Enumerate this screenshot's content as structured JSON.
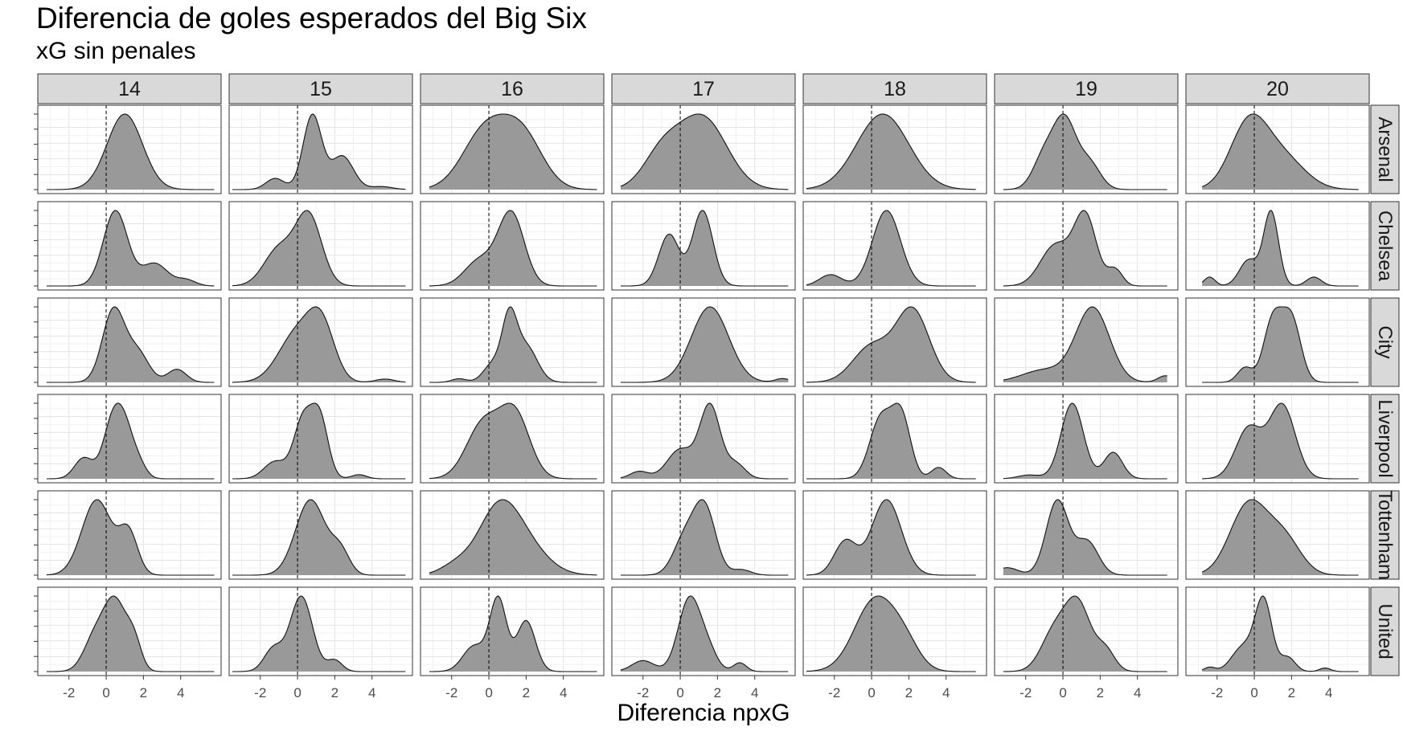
{
  "chart_data": {
    "type": "area",
    "title": "Diferencia de goles esperados del Big Six",
    "subtitle": "xG sin penales",
    "xlabel": "Diferencia npxG",
    "ylabel": "",
    "xlim": [
      -3.5,
      6.0
    ],
    "xticks": [
      -2,
      0,
      2,
      4
    ],
    "reference_line_x": 0,
    "fill_color": "#999999",
    "grid": true,
    "col_facets": [
      "14",
      "15",
      "16",
      "17",
      "18",
      "19",
      "20"
    ],
    "row_facets": [
      "Arsenal",
      "Chelsea",
      "City",
      "Liverpool",
      "Tottenham",
      "United"
    ],
    "x_range_by_season": {
      "14": [
        -3.2,
        5.8
      ],
      "15": [
        -3.5,
        5.8
      ],
      "16": [
        -3.2,
        5.8
      ],
      "17": [
        -3.2,
        5.8
      ],
      "18": [
        -3.5,
        5.6
      ],
      "19": [
        -3.2,
        5.6
      ],
      "20": [
        -2.8,
        5.6
      ]
    },
    "densities": [
      {
        "team": "Arsenal",
        "season": "14",
        "peaks": [
          [
            1.0,
            1.0,
            0.95
          ]
        ]
      },
      {
        "team": "Arsenal",
        "season": "15",
        "peaks": [
          [
            0.8,
            1.0,
            0.5
          ],
          [
            2.4,
            0.45,
            0.6
          ],
          [
            -1.2,
            0.15,
            0.5
          ],
          [
            4.5,
            0.04,
            0.6
          ]
        ]
      },
      {
        "team": "Arsenal",
        "season": "16",
        "peaks": [
          [
            -0.2,
            0.9,
            1.2
          ],
          [
            1.8,
            0.8,
            1.1
          ]
        ]
      },
      {
        "team": "Arsenal",
        "season": "17",
        "peaks": [
          [
            1.2,
            0.95,
            1.3
          ],
          [
            -1.0,
            0.45,
            1.0
          ]
        ]
      },
      {
        "team": "Arsenal",
        "season": "18",
        "peaks": [
          [
            0.6,
            1.0,
            1.4
          ]
        ]
      },
      {
        "team": "Arsenal",
        "season": "19",
        "peaks": [
          [
            0.1,
            1.0,
            0.6
          ],
          [
            -1.0,
            0.5,
            0.6
          ],
          [
            1.4,
            0.4,
            0.6
          ]
        ]
      },
      {
        "team": "Arsenal",
        "season": "20",
        "peaks": [
          [
            -0.3,
            1.0,
            1.0
          ],
          [
            1.5,
            0.5,
            1.2
          ]
        ]
      },
      {
        "team": "Chelsea",
        "season": "14",
        "peaks": [
          [
            0.5,
            1.0,
            0.65
          ],
          [
            2.6,
            0.3,
            0.7
          ],
          [
            4.3,
            0.08,
            0.5
          ]
        ]
      },
      {
        "team": "Chelsea",
        "season": "15",
        "peaks": [
          [
            0.6,
            0.95,
            0.7
          ],
          [
            -1.0,
            0.5,
            0.8
          ]
        ]
      },
      {
        "team": "Chelsea",
        "season": "16",
        "peaks": [
          [
            1.2,
            1.0,
            0.7
          ],
          [
            -0.5,
            0.35,
            0.8
          ]
        ]
      },
      {
        "team": "Chelsea",
        "season": "17",
        "peaks": [
          [
            1.2,
            0.95,
            0.55
          ],
          [
            -0.6,
            0.65,
            0.55
          ]
        ]
      },
      {
        "team": "Chelsea",
        "season": "18",
        "peaks": [
          [
            0.8,
            1.0,
            0.75
          ],
          [
            -2.2,
            0.15,
            0.6
          ]
        ]
      },
      {
        "team": "Chelsea",
        "season": "19",
        "peaks": [
          [
            1.2,
            0.85,
            0.6
          ],
          [
            -0.4,
            0.5,
            0.8
          ],
          [
            2.8,
            0.2,
            0.4
          ]
        ]
      },
      {
        "team": "Chelsea",
        "season": "20",
        "peaks": [
          [
            0.9,
            1.0,
            0.4
          ],
          [
            -0.3,
            0.35,
            0.5
          ],
          [
            -2.4,
            0.12,
            0.3
          ],
          [
            3.2,
            0.12,
            0.4
          ]
        ]
      },
      {
        "team": "City",
        "season": "14",
        "peaks": [
          [
            0.4,
            1.0,
            0.6
          ],
          [
            1.7,
            0.4,
            0.6
          ],
          [
            3.8,
            0.18,
            0.5
          ]
        ]
      },
      {
        "team": "City",
        "season": "15",
        "peaks": [
          [
            0.0,
            0.6,
            1.0
          ],
          [
            1.3,
            0.6,
            0.7
          ],
          [
            4.7,
            0.04,
            0.5
          ]
        ]
      },
      {
        "team": "City",
        "season": "16",
        "peaks": [
          [
            1.1,
            1.0,
            0.4
          ],
          [
            2.0,
            0.6,
            0.6
          ],
          [
            0.2,
            0.3,
            0.5
          ],
          [
            -1.6,
            0.06,
            0.4
          ]
        ]
      },
      {
        "team": "City",
        "season": "17",
        "peaks": [
          [
            1.6,
            1.0,
            1.0
          ],
          [
            5.5,
            0.05,
            0.4
          ]
        ]
      },
      {
        "team": "City",
        "season": "18",
        "peaks": [
          [
            2.2,
            0.9,
            0.9
          ],
          [
            0.0,
            0.45,
            1.0
          ]
        ]
      },
      {
        "team": "City",
        "season": "19",
        "peaks": [
          [
            1.6,
            0.9,
            0.9
          ],
          [
            -1.0,
            0.15,
            1.2
          ],
          [
            5.5,
            0.08,
            0.4
          ]
        ]
      },
      {
        "team": "City",
        "season": "20",
        "peaks": [
          [
            1.0,
            0.85,
            0.5
          ],
          [
            2.0,
            0.85,
            0.5
          ],
          [
            -0.5,
            0.2,
            0.4
          ]
        ]
      },
      {
        "team": "Liverpool",
        "season": "14",
        "peaks": [
          [
            0.3,
            0.95,
            0.5
          ],
          [
            1.0,
            0.9,
            0.5
          ],
          [
            -1.2,
            0.4,
            0.5
          ],
          [
            1.8,
            0.2,
            0.4
          ]
        ]
      },
      {
        "team": "Liverpool",
        "season": "15",
        "peaks": [
          [
            0.3,
            0.85,
            0.5
          ],
          [
            1.2,
            0.85,
            0.45
          ],
          [
            -1.2,
            0.25,
            0.6
          ],
          [
            3.3,
            0.06,
            0.4
          ]
        ]
      },
      {
        "team": "Liverpool",
        "season": "16",
        "peaks": [
          [
            -0.3,
            0.65,
            0.9
          ],
          [
            1.4,
            0.75,
            0.8
          ]
        ]
      },
      {
        "team": "Liverpool",
        "season": "17",
        "peaks": [
          [
            1.6,
            1.0,
            0.55
          ],
          [
            0.0,
            0.4,
            0.7
          ],
          [
            3.0,
            0.2,
            0.5
          ],
          [
            -2.2,
            0.1,
            0.5
          ]
        ]
      },
      {
        "team": "Liverpool",
        "season": "18",
        "peaks": [
          [
            0.5,
            0.8,
            0.6
          ],
          [
            1.6,
            0.8,
            0.5
          ],
          [
            3.6,
            0.15,
            0.4
          ]
        ]
      },
      {
        "team": "Liverpool",
        "season": "19",
        "peaks": [
          [
            0.5,
            1.0,
            0.6
          ],
          [
            2.7,
            0.35,
            0.5
          ],
          [
            -1.8,
            0.05,
            0.6
          ]
        ]
      },
      {
        "team": "Liverpool",
        "season": "20",
        "peaks": [
          [
            -0.3,
            0.55,
            0.7
          ],
          [
            1.5,
            0.8,
            0.7
          ]
        ]
      },
      {
        "team": "Tottenham",
        "season": "14",
        "peaks": [
          [
            -0.5,
            1.0,
            0.8
          ],
          [
            1.2,
            0.55,
            0.5
          ]
        ]
      },
      {
        "team": "Tottenham",
        "season": "15",
        "peaks": [
          [
            0.7,
            1.0,
            0.8
          ],
          [
            2.3,
            0.3,
            0.5
          ]
        ]
      },
      {
        "team": "Tottenham",
        "season": "16",
        "peaks": [
          [
            0.5,
            1.0,
            1.1
          ],
          [
            2.0,
            0.4,
            1.2
          ],
          [
            -1.8,
            0.15,
            0.8
          ]
        ]
      },
      {
        "team": "Tottenham",
        "season": "17",
        "peaks": [
          [
            1.3,
            1.0,
            0.6
          ],
          [
            0.2,
            0.5,
            0.6
          ],
          [
            3.3,
            0.08,
            0.5
          ]
        ]
      },
      {
        "team": "Tottenham",
        "season": "18",
        "peaks": [
          [
            0.8,
            1.0,
            0.8
          ],
          [
            -1.4,
            0.45,
            0.6
          ]
        ]
      },
      {
        "team": "Tottenham",
        "season": "19",
        "peaks": [
          [
            -0.3,
            1.0,
            0.6
          ],
          [
            1.3,
            0.45,
            0.6
          ],
          [
            -3.0,
            0.1,
            0.6
          ]
        ]
      },
      {
        "team": "Tottenham",
        "season": "20",
        "peaks": [
          [
            -0.3,
            1.0,
            1.0
          ],
          [
            1.6,
            0.5,
            0.9
          ]
        ]
      },
      {
        "team": "United",
        "season": "14",
        "peaks": [
          [
            0.5,
            1.0,
            0.6
          ],
          [
            -0.6,
            0.5,
            0.6
          ],
          [
            1.5,
            0.4,
            0.4
          ]
        ]
      },
      {
        "team": "United",
        "season": "15",
        "peaks": [
          [
            0.2,
            1.0,
            0.6
          ],
          [
            -1.3,
            0.3,
            0.5
          ],
          [
            2.0,
            0.15,
            0.4
          ]
        ]
      },
      {
        "team": "United",
        "season": "16",
        "peaks": [
          [
            0.5,
            1.0,
            0.45
          ],
          [
            2.0,
            0.7,
            0.5
          ],
          [
            -0.8,
            0.35,
            0.6
          ]
        ]
      },
      {
        "team": "United",
        "season": "17",
        "peaks": [
          [
            0.5,
            1.0,
            0.6
          ],
          [
            1.5,
            0.25,
            0.5
          ],
          [
            -2.0,
            0.15,
            0.6
          ],
          [
            3.2,
            0.12,
            0.35
          ]
        ]
      },
      {
        "team": "United",
        "season": "18",
        "peaks": [
          [
            0.2,
            1.0,
            1.1
          ],
          [
            1.8,
            0.3,
            0.8
          ]
        ]
      },
      {
        "team": "United",
        "season": "19",
        "peaks": [
          [
            0.8,
            1.0,
            0.7
          ],
          [
            -0.5,
            0.55,
            0.7
          ],
          [
            2.3,
            0.3,
            0.5
          ]
        ]
      },
      {
        "team": "United",
        "season": "20",
        "peaks": [
          [
            0.5,
            1.0,
            0.45
          ],
          [
            -0.6,
            0.35,
            0.6
          ],
          [
            1.8,
            0.2,
            0.4
          ],
          [
            -2.4,
            0.06,
            0.3
          ],
          [
            3.8,
            0.05,
            0.3
          ]
        ]
      }
    ]
  }
}
